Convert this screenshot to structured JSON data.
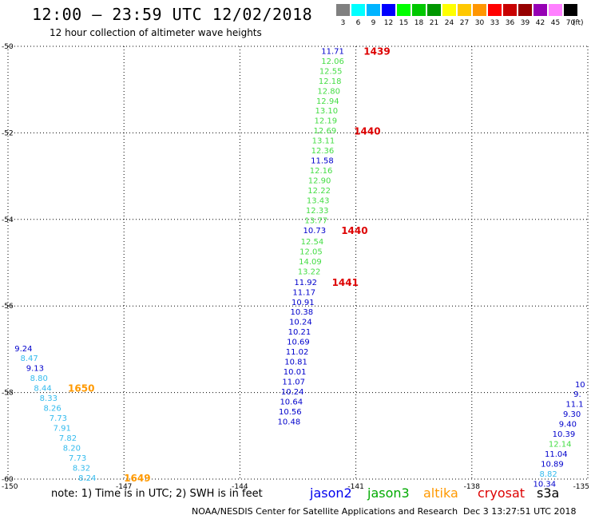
{
  "header": {
    "title": "12:00 – 23:59 UTC 12/02/2018",
    "subtitle": "12 hour collection of altimeter wave heights"
  },
  "color_scale": {
    "labels": [
      "3",
      "6",
      "9",
      "12",
      "15",
      "18",
      "21",
      "24",
      "27",
      "30",
      "33",
      "36",
      "39",
      "42",
      "45",
      "70"
    ],
    "colors": [
      "#808080",
      "#00ffff",
      "#00b4ff",
      "#0000ff",
      "#00ff00",
      "#00c800",
      "#009600",
      "#ffff00",
      "#ffc800",
      "#ff9600",
      "#ff0000",
      "#c80000",
      "#960000",
      "#9600b4",
      "#ff80ff",
      "#000000"
    ],
    "unit": "(ft)"
  },
  "footer": {
    "note": "note: 1) Time is in UTC; 2) SWH is in feet",
    "satellites": [
      {
        "name": "jason2",
        "color": "#0000ee"
      },
      {
        "name": "jason3",
        "color": "#00aa00"
      },
      {
        "name": "altika",
        "color": "#ff9900"
      },
      {
        "name": "cryosat",
        "color": "#dd0000"
      },
      {
        "name": "s3a",
        "color": "#000000"
      }
    ],
    "credit": "NOAA/NESDIS Center for Satellite Applications and Research",
    "timestamp": "Dec  3 13:27:51 UTC 2018"
  },
  "chart_data": {
    "type": "scatter",
    "title": "12:00 – 23:59 UTC 12/02/2018",
    "subtitle": "12 hour collection of altimeter wave heights",
    "xlim": [
      -150,
      -135
    ],
    "ylim": [
      -60,
      -50
    ],
    "x_ticks": [
      "-150",
      "-147",
      "-144",
      "-141",
      "-138",
      "-135"
    ],
    "x_tick_values": [
      -150,
      -147,
      -144,
      -141,
      -138,
      -135
    ],
    "y_ticks": [
      "-50",
      "-52",
      "-54",
      "-56",
      "-58",
      "-60"
    ],
    "y_tick_values": [
      -50,
      -52,
      -54,
      -56,
      -58,
      -60
    ],
    "grid": true,
    "colors": {
      "jason2": "#0000cc",
      "jason3": "#44dd44",
      "altika": "#ff9900",
      "altika_text": "#33bbee",
      "cryosat": "#dd0000"
    },
    "series": [
      {
        "name": "jason3",
        "points": [
          {
            "x": -141.6,
            "y": -50.1,
            "label": "11.71",
            "sat": "jason2"
          },
          {
            "x": -141.6,
            "y": -50.33,
            "label": "12.06",
            "sat": "jason3"
          },
          {
            "x": -141.65,
            "y": -50.56,
            "label": "12.55",
            "sat": "jason3"
          },
          {
            "x": -141.67,
            "y": -50.79,
            "label": "12.18",
            "sat": "jason3"
          },
          {
            "x": -141.7,
            "y": -51.02,
            "label": "12.80",
            "sat": "jason3"
          },
          {
            "x": -141.73,
            "y": -51.25,
            "label": "12.94",
            "sat": "jason3"
          },
          {
            "x": -141.76,
            "y": -51.48,
            "label": "13.10",
            "sat": "jason3"
          },
          {
            "x": -141.78,
            "y": -51.71,
            "label": "12.19",
            "sat": "jason3"
          },
          {
            "x": -141.8,
            "y": -51.94,
            "label": "12.69",
            "sat": "jason3"
          },
          {
            "x": -141.84,
            "y": -52.17,
            "label": "13.11",
            "sat": "jason3"
          },
          {
            "x": -141.86,
            "y": -52.4,
            "label": "12.36",
            "sat": "jason3"
          },
          {
            "x": -141.87,
            "y": -52.63,
            "label": "11.58",
            "sat": "jason2"
          },
          {
            "x": -141.9,
            "y": -52.86,
            "label": "12.16",
            "sat": "jason3"
          },
          {
            "x": -141.94,
            "y": -53.09,
            "label": "12.90",
            "sat": "jason3"
          },
          {
            "x": -141.95,
            "y": -53.32,
            "label": "12.22",
            "sat": "jason3"
          },
          {
            "x": -141.98,
            "y": -53.55,
            "label": "13.43",
            "sat": "jason3"
          },
          {
            "x": -142.0,
            "y": -53.78,
            "label": "12.33",
            "sat": "jason3"
          },
          {
            "x": -142.03,
            "y": -54.01,
            "label": "13.77",
            "sat": "jason3"
          },
          {
            "x": -142.07,
            "y": -54.24,
            "label": "10.73",
            "sat": "jason2"
          },
          {
            "x": -142.13,
            "y": -54.5,
            "label": "12.54",
            "sat": "jason3"
          },
          {
            "x": -142.16,
            "y": -54.73,
            "label": "12.05",
            "sat": "jason3"
          },
          {
            "x": -142.18,
            "y": -54.96,
            "label": "14.09",
            "sat": "jason3"
          },
          {
            "x": -142.21,
            "y": -55.19,
            "label": "13.22",
            "sat": "jason3"
          }
        ]
      },
      {
        "name": "jason2",
        "points": [
          {
            "x": -142.3,
            "y": -55.44,
            "label": "11.92",
            "sat": "jason2"
          },
          {
            "x": -142.34,
            "y": -55.67,
            "label": "11.17",
            "sat": "jason2"
          },
          {
            "x": -142.37,
            "y": -55.9,
            "label": "10.91",
            "sat": "jason2"
          },
          {
            "x": -142.4,
            "y": -56.13,
            "label": "10.38",
            "sat": "jason2"
          },
          {
            "x": -142.43,
            "y": -56.36,
            "label": "10.24",
            "sat": "jason2"
          },
          {
            "x": -142.46,
            "y": -56.59,
            "label": "10.21",
            "sat": "jason2"
          },
          {
            "x": -142.49,
            "y": -56.82,
            "label": "10.69",
            "sat": "jason2"
          },
          {
            "x": -142.52,
            "y": -57.05,
            "label": "11.02",
            "sat": "jason2"
          },
          {
            "x": -142.55,
            "y": -57.28,
            "label": "10.81",
            "sat": "jason2"
          },
          {
            "x": -142.58,
            "y": -57.51,
            "label": "10.01",
            "sat": "jason2"
          },
          {
            "x": -142.61,
            "y": -57.74,
            "label": "11.07",
            "sat": "jason2"
          },
          {
            "x": -142.64,
            "y": -57.97,
            "label": "10.24",
            "sat": "jason2"
          },
          {
            "x": -142.67,
            "y": -58.2,
            "label": "10.64",
            "sat": "jason2"
          },
          {
            "x": -142.7,
            "y": -58.43,
            "label": "10.56",
            "sat": "jason2"
          },
          {
            "x": -142.73,
            "y": -58.66,
            "label": "10.48",
            "sat": "jason2"
          }
        ]
      },
      {
        "name": "altika",
        "points": [
          {
            "x": -149.6,
            "y": -56.97,
            "label": "9.24",
            "sat": "jason2"
          },
          {
            "x": -149.45,
            "y": -57.2,
            "label": "8.47",
            "sat": "altika"
          },
          {
            "x": -149.3,
            "y": -57.43,
            "label": "9.13",
            "sat": "jason2"
          },
          {
            "x": -149.2,
            "y": -57.66,
            "label": "8.80",
            "sat": "altika"
          },
          {
            "x": -149.1,
            "y": -57.89,
            "label": "8.44",
            "sat": "altika"
          },
          {
            "x": -148.95,
            "y": -58.12,
            "label": "8.33",
            "sat": "altika"
          },
          {
            "x": -148.85,
            "y": -58.35,
            "label": "8.26",
            "sat": "altika"
          },
          {
            "x": -148.7,
            "y": -58.58,
            "label": "7.73",
            "sat": "altika"
          },
          {
            "x": -148.6,
            "y": -58.81,
            "label": "7.91",
            "sat": "altika"
          },
          {
            "x": -148.45,
            "y": -59.04,
            "label": "7.82",
            "sat": "altika"
          },
          {
            "x": -148.35,
            "y": -59.27,
            "label": "8.20",
            "sat": "altika"
          },
          {
            "x": -148.2,
            "y": -59.5,
            "label": "7.73",
            "sat": "altika"
          },
          {
            "x": -148.1,
            "y": -59.73,
            "label": "8.32",
            "sat": "altika"
          },
          {
            "x": -147.95,
            "y": -59.96,
            "label": "8.24",
            "sat": "altika"
          }
        ]
      },
      {
        "name": "right-edge-pass",
        "points": [
          {
            "x": -135.2,
            "y": -57.8,
            "label": "10",
            "sat": "jason2"
          },
          {
            "x": -135.27,
            "y": -58.03,
            "label": "9.",
            "sat": "jason2"
          },
          {
            "x": -135.34,
            "y": -58.26,
            "label": "11.1",
            "sat": "jason2"
          },
          {
            "x": -135.41,
            "y": -58.49,
            "label": "9.30",
            "sat": "jason2"
          },
          {
            "x": -135.52,
            "y": -58.72,
            "label": "9.40",
            "sat": "jason2"
          },
          {
            "x": -135.62,
            "y": -58.95,
            "label": "10.39",
            "sat": "jason2"
          },
          {
            "x": -135.72,
            "y": -59.18,
            "label": "12.14",
            "sat": "jason3"
          },
          {
            "x": -135.82,
            "y": -59.41,
            "label": "11.04",
            "sat": "jason2"
          },
          {
            "x": -135.92,
            "y": -59.64,
            "label": "10.89",
            "sat": "jason2"
          },
          {
            "x": -136.02,
            "y": -59.87,
            "label": "8.82",
            "sat": "altika"
          },
          {
            "x": -136.12,
            "y": -60.1,
            "label": "10.34",
            "sat": "jason2"
          }
        ]
      }
    ],
    "annotations": [
      {
        "text": "1439",
        "x": -140.8,
        "y": -50.1,
        "sat": "cryosat"
      },
      {
        "text": "1440",
        "x": -141.05,
        "y": -51.95,
        "sat": "cryosat"
      },
      {
        "text": "1440",
        "x": -141.38,
        "y": -54.24,
        "sat": "cryosat"
      },
      {
        "text": "1441",
        "x": -141.62,
        "y": -55.44,
        "sat": "cryosat"
      },
      {
        "text": "1650",
        "x": -148.45,
        "y": -57.89,
        "sat": "altika"
      },
      {
        "text": "1649",
        "x": -147.0,
        "y": -59.96,
        "sat": "altika"
      }
    ]
  }
}
